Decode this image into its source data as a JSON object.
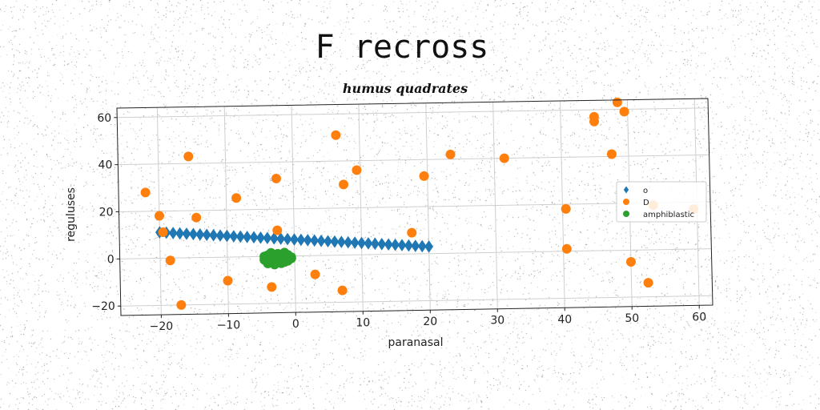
{
  "chart_data": {
    "type": "scatter",
    "title": "F recross",
    "subtitle": "humus quadrates",
    "xlabel": "paranasal",
    "ylabel": "reguluses",
    "xlim": [
      -26,
      62
    ],
    "ylim": [
      -24,
      64
    ],
    "xticks": [
      -20,
      -10,
      0,
      10,
      20,
      30,
      40,
      50,
      60
    ],
    "yticks": [
      -20,
      0,
      20,
      40,
      60
    ],
    "grid": true,
    "legend_position": "right",
    "series": [
      {
        "name": "o",
        "marker": "diamond",
        "color": "#1f77b4",
        "x": [
          -20,
          -19,
          -18,
          -17,
          -16,
          -15,
          -14,
          -13,
          -12,
          -11,
          -10,
          -9,
          -8,
          -7,
          -6,
          -5,
          -4,
          -3,
          -2,
          -1,
          0,
          1,
          2,
          3,
          4,
          5,
          6,
          7,
          8,
          9,
          10,
          11,
          12,
          13,
          14,
          15,
          16,
          17,
          18,
          19,
          20
        ],
        "y": [
          11.0,
          10.8,
          10.6,
          10.4,
          10.2,
          10.0,
          9.8,
          9.6,
          9.4,
          9.2,
          9.0,
          8.8,
          8.6,
          8.4,
          8.2,
          8.0,
          7.8,
          7.6,
          7.4,
          7.2,
          7.0,
          6.8,
          6.6,
          6.4,
          6.2,
          6.0,
          5.8,
          5.6,
          5.4,
          5.2,
          5.0,
          4.8,
          4.6,
          4.4,
          4.2,
          4.0,
          3.8,
          3.6,
          3.4,
          3.2,
          3.0
        ]
      },
      {
        "name": "D",
        "marker": "circle",
        "color": "#ff7f0e",
        "x": [
          -22,
          -20,
          -19.5,
          -18.5,
          -17,
          -15.5,
          -14.5,
          -10,
          -8.5,
          -3.5,
          -2.5,
          -2.5,
          3,
          6.5,
          7,
          7.5,
          9.5,
          17.5,
          19.5,
          23.5,
          31.5,
          40.5,
          40.5,
          45,
          45,
          47.5,
          48.5,
          49.5,
          50,
          53.5,
          59.5,
          52.5
        ],
        "y": [
          28,
          18,
          11,
          -1,
          -20,
          43,
          17,
          -10,
          25,
          -13,
          33,
          11,
          -8,
          51,
          -15,
          30,
          36,
          9,
          33,
          42,
          40,
          18,
          1,
          57,
          55,
          41,
          63,
          59,
          -5,
          19,
          17,
          -14
        ]
      },
      {
        "name": "amphiblastic",
        "marker": "circle",
        "color": "#2ca02c",
        "x": [
          -4.5,
          -4,
          -3.5,
          -3,
          -2.5,
          -2,
          -1.5,
          -1,
          -0.5,
          -4,
          -3.5,
          -3,
          -2.5,
          -2,
          -1.5,
          -1,
          -4.5,
          -3.5,
          -2.5,
          -1.5,
          -0.5,
          -4,
          -3,
          -2,
          -1
        ],
        "y": [
          0,
          0.5,
          -1,
          0,
          1,
          -0.5,
          0,
          0.5,
          -1,
          -2,
          -1.5,
          -2.5,
          -1.5,
          -2,
          -2.5,
          -1,
          -1.5,
          1.5,
          1,
          1.5,
          -0.5,
          -3,
          -3.5,
          -3,
          -2
        ]
      }
    ]
  }
}
